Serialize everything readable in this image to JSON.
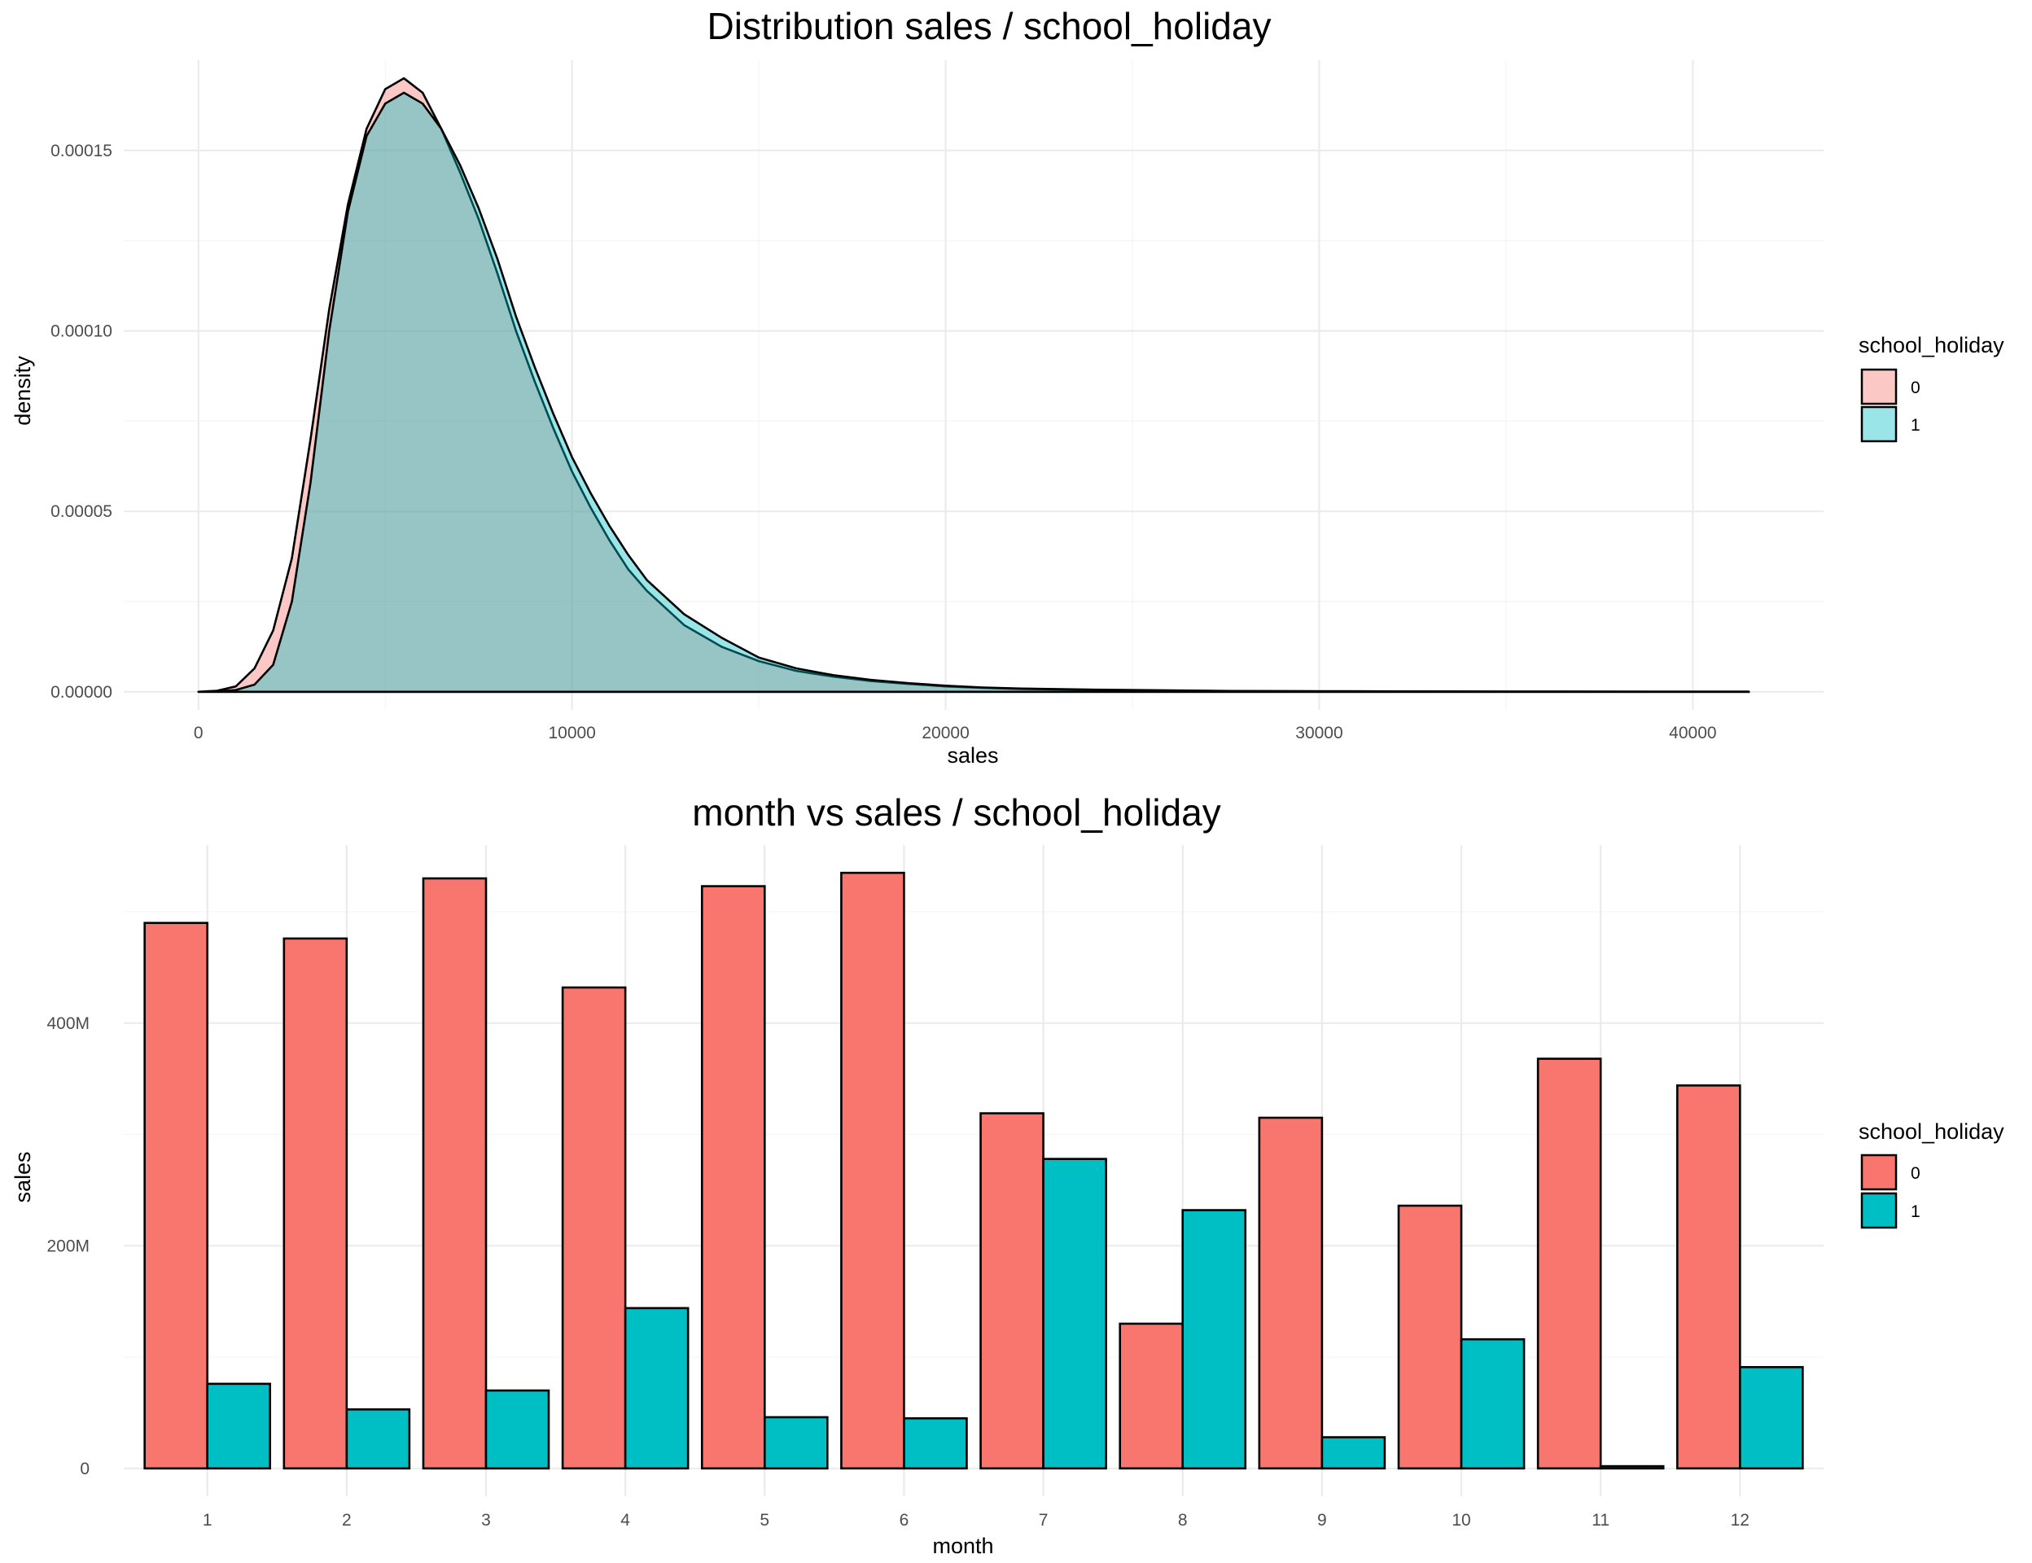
{
  "chart_data": [
    {
      "type": "area",
      "title": "Distribution sales / school_holiday",
      "xlabel": "sales",
      "ylabel": "density",
      "xlim": [
        -2000,
        43500
      ],
      "ylim": [
        -5e-06,
        0.000175
      ],
      "x_ticks": [
        0,
        10000,
        20000,
        30000,
        40000
      ],
      "x_tick_labels": [
        "0",
        "10000",
        "20000",
        "30000",
        "40000"
      ],
      "y_ticks": [
        0,
        5e-05,
        0.0001,
        0.00015
      ],
      "y_tick_labels": [
        "0.00000",
        "0.00005",
        "0.00010",
        "0.00015"
      ],
      "grid": true,
      "legend": {
        "title": "school_holiday",
        "placement": "right"
      },
      "series": [
        {
          "name": "0",
          "color": "#F8766D",
          "fill_alpha": 0.4,
          "points": [
            [
              0,
              0
            ],
            [
              500,
              3e-07
            ],
            [
              1000,
              1.5e-06
            ],
            [
              1500,
              6.5e-06
            ],
            [
              2000,
              1.7e-05
            ],
            [
              2500,
              3.7e-05
            ],
            [
              3000,
              7e-05
            ],
            [
              3500,
              0.000106
            ],
            [
              4000,
              0.000135
            ],
            [
              4500,
              0.000156
            ],
            [
              5000,
              0.000167
            ],
            [
              5500,
              0.00017
            ],
            [
              6000,
              0.000166
            ],
            [
              6500,
              0.000156
            ],
            [
              7000,
              0.000144
            ],
            [
              7500,
              0.000131
            ],
            [
              8000,
              0.000116
            ],
            [
              8500,
              0.0001
            ],
            [
              9000,
              8.6e-05
            ],
            [
              9500,
              7.3e-05
            ],
            [
              10000,
              6.1e-05
            ],
            [
              10500,
              5.1e-05
            ],
            [
              11000,
              4.2e-05
            ],
            [
              11500,
              3.4e-05
            ],
            [
              12000,
              2.8e-05
            ],
            [
              13000,
              1.85e-05
            ],
            [
              14000,
              1.25e-05
            ],
            [
              15000,
              8.5e-06
            ],
            [
              16000,
              5.8e-06
            ],
            [
              17000,
              4.2e-06
            ],
            [
              18000,
              3e-06
            ],
            [
              19000,
              2.2e-06
            ],
            [
              20000,
              1.5e-06
            ],
            [
              21000,
              1.1e-06
            ],
            [
              22000,
              8e-07
            ],
            [
              24000,
              5e-07
            ],
            [
              26000,
              3e-07
            ],
            [
              28000,
              2e-07
            ],
            [
              30000,
              1.5e-07
            ],
            [
              35000,
              7e-08
            ],
            [
              41500,
              3e-08
            ]
          ]
        },
        {
          "name": "1",
          "color": "#00BFC4",
          "fill_alpha": 0.4,
          "points": [
            [
              0,
              0
            ],
            [
              500,
              1e-07
            ],
            [
              1000,
              5e-07
            ],
            [
              1500,
              2e-06
            ],
            [
              2000,
              7.5e-06
            ],
            [
              2500,
              2.5e-05
            ],
            [
              3000,
              5.8e-05
            ],
            [
              3500,
              0.0001
            ],
            [
              4000,
              0.000133
            ],
            [
              4500,
              0.000154
            ],
            [
              5000,
              0.000163
            ],
            [
              5500,
              0.000166
            ],
            [
              6000,
              0.000163
            ],
            [
              6500,
              0.000156
            ],
            [
              7000,
              0.000146
            ],
            [
              7500,
              0.000134
            ],
            [
              8000,
              0.00012
            ],
            [
              8500,
              0.000104
            ],
            [
              9000,
              9e-05
            ],
            [
              9500,
              7.7e-05
            ],
            [
              10000,
              6.5e-05
            ],
            [
              10500,
              5.5e-05
            ],
            [
              11000,
              4.6e-05
            ],
            [
              11500,
              3.8e-05
            ],
            [
              12000,
              3.1e-05
            ],
            [
              13000,
              2.15e-05
            ],
            [
              14000,
              1.5e-05
            ],
            [
              15000,
              9.5e-06
            ],
            [
              16000,
              6.5e-06
            ],
            [
              17000,
              4.6e-06
            ],
            [
              18000,
              3.3e-06
            ],
            [
              19000,
              2.4e-06
            ],
            [
              20000,
              1.7e-06
            ],
            [
              21000,
              1.2e-06
            ],
            [
              22000,
              9e-07
            ],
            [
              24000,
              6e-07
            ],
            [
              26000,
              4e-07
            ],
            [
              28000,
              2e-07
            ],
            [
              30000,
              1.5e-07
            ],
            [
              35000,
              7e-08
            ],
            [
              41500,
              3e-08
            ]
          ]
        }
      ]
    },
    {
      "type": "bar",
      "title": "month vs sales / school_holiday",
      "xlabel": "month",
      "ylabel": "sales",
      "categories": [
        "1",
        "2",
        "3",
        "4",
        "5",
        "6",
        "7",
        "8",
        "9",
        "10",
        "11",
        "12"
      ],
      "ylim": [
        -25000000,
        560000000
      ],
      "y_ticks": [
        0,
        200000000,
        400000000
      ],
      "y_tick_labels": [
        "0",
        "200M",
        "400M"
      ],
      "grid": true,
      "legend": {
        "title": "school_holiday",
        "placement": "right"
      },
      "series": [
        {
          "name": "0",
          "color": "#F8766D",
          "values": [
            490000000,
            476000000,
            530000000,
            432000000,
            523000000,
            535000000,
            319000000,
            130000000,
            315000000,
            236000000,
            368000000,
            344000000
          ]
        },
        {
          "name": "1",
          "color": "#00BFC4",
          "values": [
            76000000,
            53000000,
            70000000,
            144000000,
            46000000,
            45000000,
            278000000,
            232000000,
            28000000,
            116000000,
            2000000,
            91000000
          ]
        }
      ]
    }
  ]
}
